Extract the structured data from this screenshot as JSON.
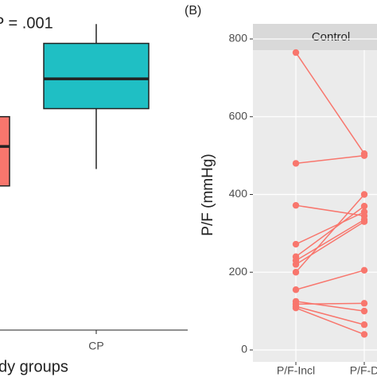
{
  "chart_data": [
    {
      "type": "box",
      "annotation": "P = .001",
      "xlabel": "dy groups",
      "categories": [
        null,
        "CP"
      ],
      "colors": [
        "#f8766d",
        "#1fbfc4"
      ],
      "whisker_low": [
        null,
        200
      ],
      "q1": [
        179,
        275
      ],
      "median": [
        228,
        312
      ],
      "q3": [
        265,
        356
      ],
      "whisker_high": [
        null,
        380
      ],
      "ylim": [
        0,
        400
      ]
    },
    {
      "type": "line",
      "panel_label": "(B)",
      "strip": "Control",
      "ylabel": "P/F (mmHg)",
      "x": [
        "P/F-Incl",
        "P/F-D"
      ],
      "ylim": [
        0,
        800
      ],
      "yticks": [
        0,
        200,
        400,
        600,
        800
      ],
      "grid": true,
      "series": [
        {
          "color": "#f8766d",
          "values": [
            765,
            505
          ]
        },
        {
          "color": "#f8766d",
          "values": [
            480,
            500
          ]
        },
        {
          "color": "#f8766d",
          "values": [
            372,
            345
          ]
        },
        {
          "color": "#f8766d",
          "values": [
            272,
            355
          ]
        },
        {
          "color": "#f8766d",
          "values": [
            240,
            370
          ]
        },
        {
          "color": "#f8766d",
          "values": [
            230,
            335
          ]
        },
        {
          "color": "#f8766d",
          "values": [
            220,
            330
          ]
        },
        {
          "color": "#f8766d",
          "values": [
            200,
            400
          ]
        },
        {
          "color": "#f8766d",
          "values": [
            155,
            205
          ]
        },
        {
          "color": "#f8766d",
          "values": [
            125,
            100
          ]
        },
        {
          "color": "#f8766d",
          "values": [
            118,
            120
          ]
        },
        {
          "color": "#f8766d",
          "values": [
            112,
            65
          ]
        },
        {
          "color": "#f8766d",
          "values": [
            108,
            40
          ]
        }
      ]
    }
  ]
}
